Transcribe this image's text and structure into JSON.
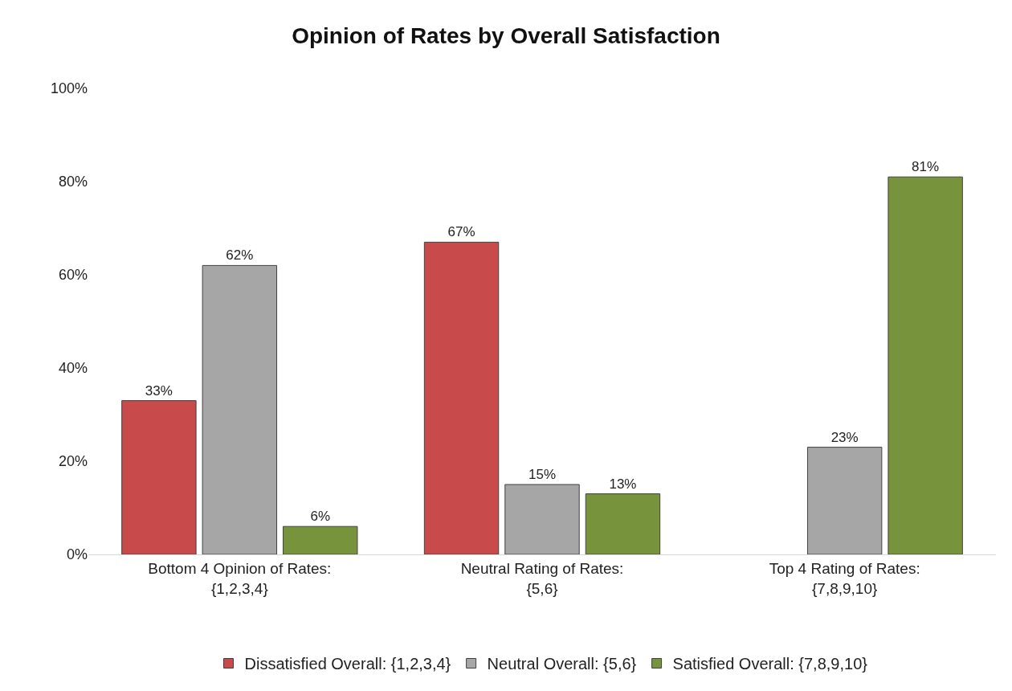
{
  "chart_data": {
    "type": "bar",
    "title": "Opinion of Rates by Overall Satisfaction",
    "categories": [
      "Bottom 4 Opinion of Rates:\n{1,2,3,4}",
      "Neutral Rating of Rates:\n{5,6}",
      "Top 4 Rating of Rates:\n{7,8,9,10}"
    ],
    "series": [
      {
        "name": "Dissatisfied Overall: {1,2,3,4}",
        "color": "#c94a4a",
        "values": [
          33,
          67,
          null
        ],
        "value_labels": [
          "33%",
          "67%",
          null
        ]
      },
      {
        "name": "Neutral Overall: {5,6}",
        "color": "#a6a6a6",
        "values": [
          62,
          15,
          23
        ],
        "value_labels": [
          "62%",
          "15%",
          "23%"
        ]
      },
      {
        "name": "Satisfied Overall: {7,8,9,10}",
        "color": "#77933c",
        "values": [
          6,
          13,
          81
        ],
        "value_labels": [
          "6%",
          "13%",
          "81%"
        ]
      }
    ],
    "ylim": [
      0,
      100
    ],
    "yticks": [
      {
        "value": 0,
        "label": "0%"
      },
      {
        "value": 20,
        "label": "20%"
      },
      {
        "value": 40,
        "label": "40%"
      },
      {
        "value": 60,
        "label": "60%"
      },
      {
        "value": 80,
        "label": "80%"
      },
      {
        "value": 100,
        "label": "100%"
      }
    ],
    "legend": "bottom"
  }
}
